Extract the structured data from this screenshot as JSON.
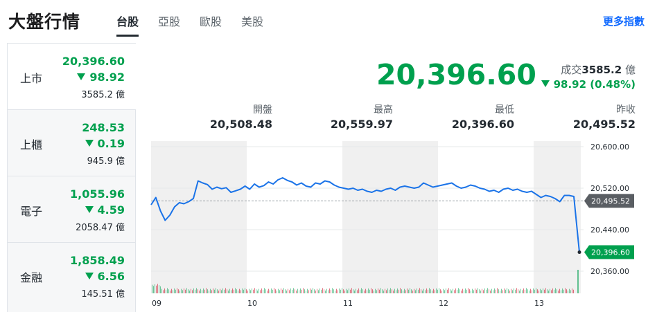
{
  "header": {
    "title": "大盤行情",
    "tabs": [
      {
        "label": "台股",
        "active": true
      },
      {
        "label": "亞股",
        "active": false
      },
      {
        "label": "歐股",
        "active": false
      },
      {
        "label": "美股",
        "active": false
      }
    ],
    "more_link": "更多指數"
  },
  "sidebar": {
    "items": [
      {
        "name": "上市",
        "price": "20,396.60",
        "change": "98.92",
        "volume": "3585.2 億"
      },
      {
        "name": "上櫃",
        "price": "248.53",
        "change": "0.19",
        "volume": "945.9 億"
      },
      {
        "name": "電子",
        "price": "1,055.96",
        "change": "4.59",
        "volume": "2058.47 億"
      },
      {
        "name": "金融",
        "price": "1,858.49",
        "change": "6.56",
        "volume": "145.51 億"
      }
    ]
  },
  "quote": {
    "price": "20,396.60",
    "volume_label": "成交",
    "volume_value": "3585.2",
    "volume_unit": "億",
    "change": "98.92 (0.48%)",
    "open_label": "開盤",
    "open": "20,508.48",
    "high_label": "最高",
    "high": "20,559.97",
    "low_label": "最低",
    "low": "20,396.60",
    "prev_label": "昨收",
    "prev": "20,495.52"
  },
  "colors": {
    "down": "#00a04e",
    "line": "#1a73e8",
    "shade": "#f0f0f0",
    "prev_tag": "#5a5e63"
  },
  "chart_data": {
    "type": "line",
    "x_ticks": [
      "09",
      "10",
      "11",
      "12",
      "13"
    ],
    "y_ticks": [
      "20,600.00",
      "20,520.00",
      "20,440.00",
      "20,360.00"
    ],
    "ylim": [
      20360,
      20600
    ],
    "prev_close": 20495.52,
    "prev_close_label": "20,495.52",
    "last_label": "20,396.60",
    "series": [
      {
        "values": [
          20488,
          20502,
          20476,
          20458,
          20468,
          20484,
          20492,
          20490,
          20494,
          20500,
          20534,
          20530,
          20527,
          20518,
          20522,
          20519,
          20521,
          20512,
          20515,
          20518,
          20524,
          20518,
          20528,
          20522,
          20525,
          20532,
          20528,
          20536,
          20540,
          20535,
          20532,
          20526,
          20530,
          20524,
          20522,
          20530,
          20528,
          20534,
          20532,
          20526,
          20522,
          20520,
          20518,
          20520,
          20516,
          20518,
          20514,
          20512,
          20516,
          20514,
          20518,
          20520,
          20516,
          20522,
          20524,
          20522,
          20520,
          20522,
          20530,
          20526,
          20522,
          20524,
          20526,
          20528,
          20530,
          20524,
          20520,
          20522,
          20526,
          20524,
          20520,
          20518,
          20514,
          20516,
          20512,
          20518,
          20520,
          20516,
          20518,
          20514,
          20512,
          20514,
          20508,
          20502,
          20506,
          20504,
          20500,
          20494,
          20506,
          20506,
          20504,
          20396.6
        ]
      }
    ]
  }
}
